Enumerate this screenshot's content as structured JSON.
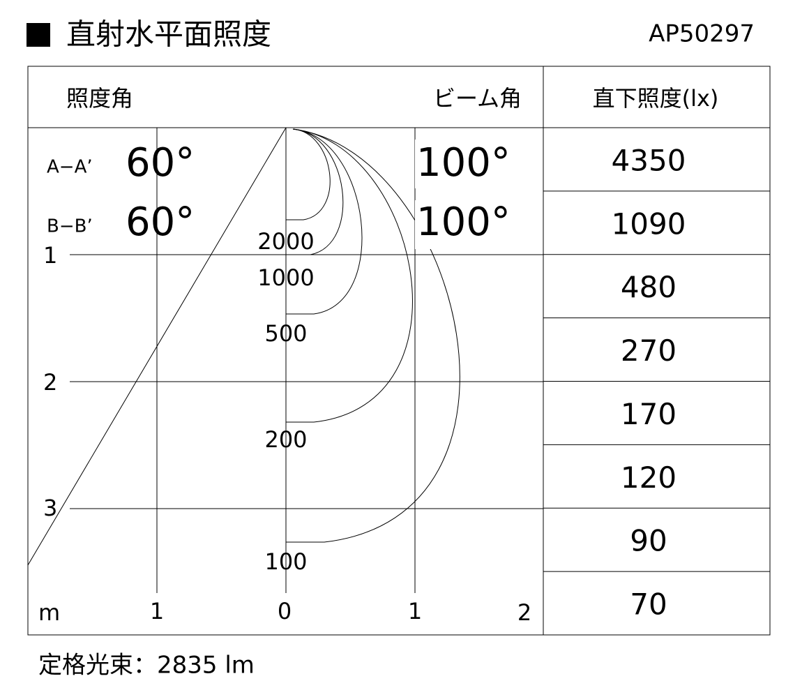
{
  "header": {
    "title": "直射水平面照度",
    "model": "AP50297"
  },
  "table": {
    "angle_header": "照度角",
    "beam_header": "ビーム角",
    "lux_header": "直下照度(lx)",
    "rows": [
      {
        "label": "A−A’",
        "angle": "60°",
        "beam": "100°"
      },
      {
        "label": "B−B’",
        "angle": "60°",
        "beam": "100°"
      }
    ],
    "lux": [
      "4350",
      "1090",
      "480",
      "270",
      "170",
      "120",
      "90",
      "70"
    ]
  },
  "axes": {
    "unit": "m",
    "y_labels": [
      "1",
      "2",
      "3"
    ],
    "x_labels": [
      "1",
      "0",
      "1",
      "2"
    ]
  },
  "contours": [
    "2000",
    "1000",
    "500",
    "200",
    "100"
  ],
  "footer": "定格光束：2835 lm"
}
